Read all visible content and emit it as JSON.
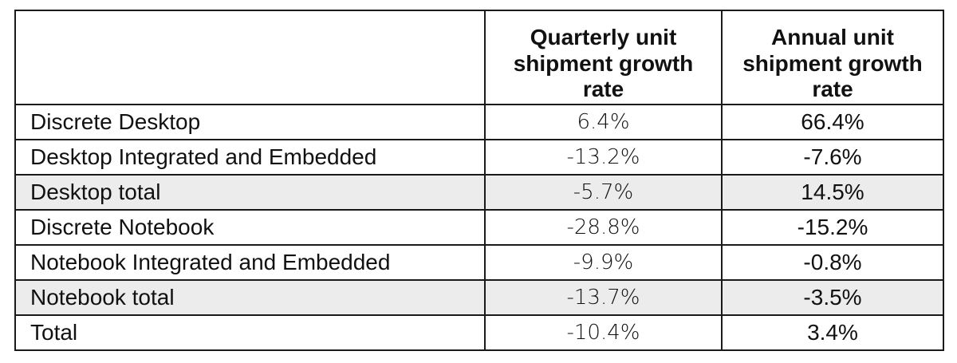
{
  "chart_data": {
    "type": "table",
    "columns": [
      "",
      "Quarterly unit shipment growth rate",
      "Annual unit shipment growth rate"
    ],
    "rows": [
      {
        "label": "Discrete Desktop",
        "quarterly": "6.4%",
        "annual": "66.4%",
        "shaded": false
      },
      {
        "label": "Desktop Integrated and Embedded",
        "quarterly": "-13.2%",
        "annual": "-7.6%",
        "shaded": false
      },
      {
        "label": "Desktop total",
        "quarterly": "-5.7%",
        "annual": "14.5%",
        "shaded": true
      },
      {
        "label": "Discrete Notebook",
        "quarterly": "-28.8%",
        "annual": "-15.2%",
        "shaded": false
      },
      {
        "label": "Notebook Integrated and Embedded",
        "quarterly": "-9.9%",
        "annual": "-0.8%",
        "shaded": false
      },
      {
        "label": "Notebook total",
        "quarterly": "-13.7%",
        "annual": "-3.5%",
        "shaded": true
      },
      {
        "label": "Total",
        "quarterly": "-10.4%",
        "annual": "3.4%",
        "shaded": false
      }
    ]
  },
  "colors": {
    "border": "#1a1a1a",
    "shaded_row": "#ececec",
    "text": "#111111"
  }
}
